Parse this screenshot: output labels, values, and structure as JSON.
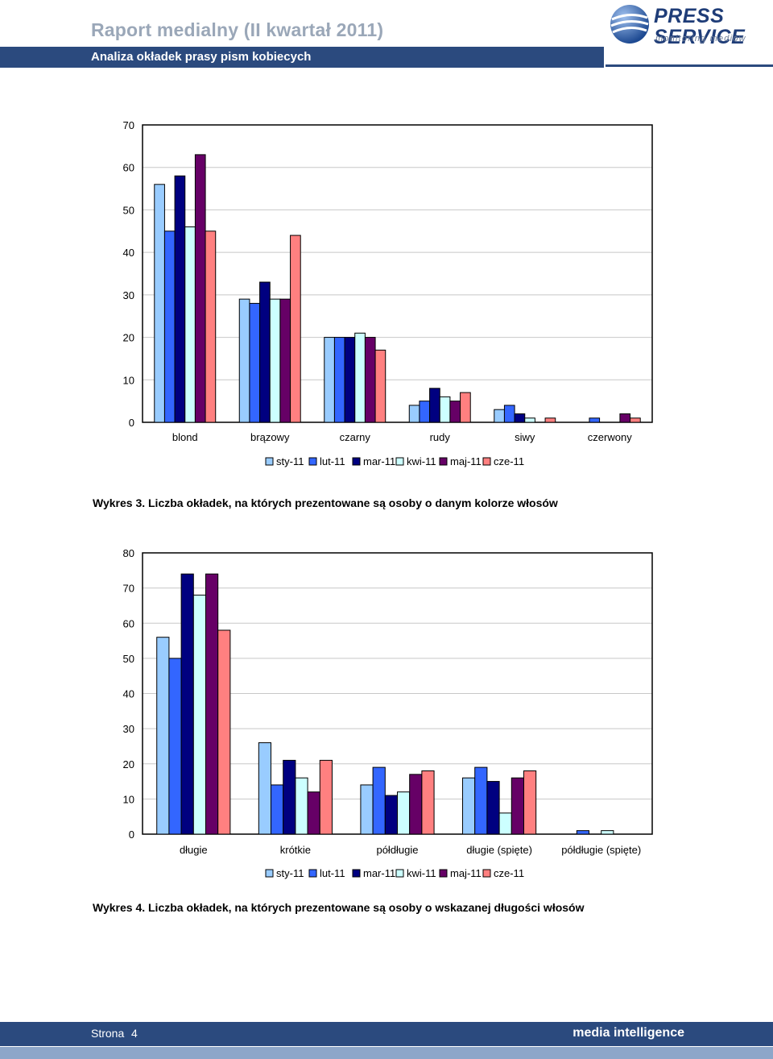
{
  "header": {
    "report_title": "Raport medialny (II kwartał 2011)",
    "subtitle": "Analiza okładek prasy pism kobiecych"
  },
  "logo": {
    "main": "PRESS SERVICE",
    "sub": "monitoring mediów"
  },
  "colors": {
    "header_bar": "#2b4a7e",
    "series": [
      "#99ccff",
      "#3366ff",
      "#000080",
      "#ccffff",
      "#660066",
      "#ff8080"
    ]
  },
  "chart_data": [
    {
      "type": "bar",
      "categories": [
        "blond",
        "brązowy",
        "czarny",
        "rudy",
        "siwy",
        "czerwony"
      ],
      "series": [
        {
          "name": "sty-11",
          "values": [
            56,
            29,
            20,
            4,
            3,
            0
          ]
        },
        {
          "name": "lut-11",
          "values": [
            45,
            28,
            20,
            5,
            4,
            1
          ]
        },
        {
          "name": "mar-11",
          "values": [
            58,
            33,
            20,
            8,
            2,
            0
          ]
        },
        {
          "name": "kwi-11",
          "values": [
            46,
            29,
            21,
            6,
            1,
            0
          ]
        },
        {
          "name": "maj-11",
          "values": [
            63,
            29,
            20,
            5,
            0,
            2
          ]
        },
        {
          "name": "cze-11",
          "values": [
            45,
            44,
            17,
            7,
            1,
            1
          ]
        }
      ],
      "ylim": [
        0,
        70
      ],
      "yticks": [
        "0",
        "10",
        "20",
        "30",
        "40",
        "50",
        "60",
        "70"
      ],
      "grid": true,
      "legend_position": "bottom",
      "caption": "Wykres 3. Liczba okładek, na których prezentowane są osoby o danym kolorze włosów"
    },
    {
      "type": "bar",
      "categories": [
        "długie",
        "krótkie",
        "półdługie",
        "długie (spięte)",
        "półdługie (spięte)"
      ],
      "series": [
        {
          "name": "sty-11",
          "values": [
            56,
            26,
            14,
            16,
            0
          ]
        },
        {
          "name": "lut-11",
          "values": [
            50,
            14,
            19,
            19,
            1
          ]
        },
        {
          "name": "mar-11",
          "values": [
            74,
            21,
            11,
            15,
            0
          ]
        },
        {
          "name": "kwi-11",
          "values": [
            68,
            16,
            12,
            6,
            1
          ]
        },
        {
          "name": "maj-11",
          "values": [
            74,
            12,
            17,
            16,
            0
          ]
        },
        {
          "name": "cze-11",
          "values": [
            58,
            21,
            18,
            18,
            0
          ]
        }
      ],
      "ylim": [
        0,
        80
      ],
      "yticks": [
        "0",
        "10",
        "20",
        "30",
        "40",
        "50",
        "60",
        "70",
        "80"
      ],
      "grid": true,
      "legend_position": "bottom",
      "caption": "Wykres 4. Liczba okładek, na których prezentowane są osoby o wskazanej długości włosów"
    }
  ],
  "footer": {
    "page_label": "Strona",
    "page_number": "4",
    "tagline": "media intelligence"
  }
}
